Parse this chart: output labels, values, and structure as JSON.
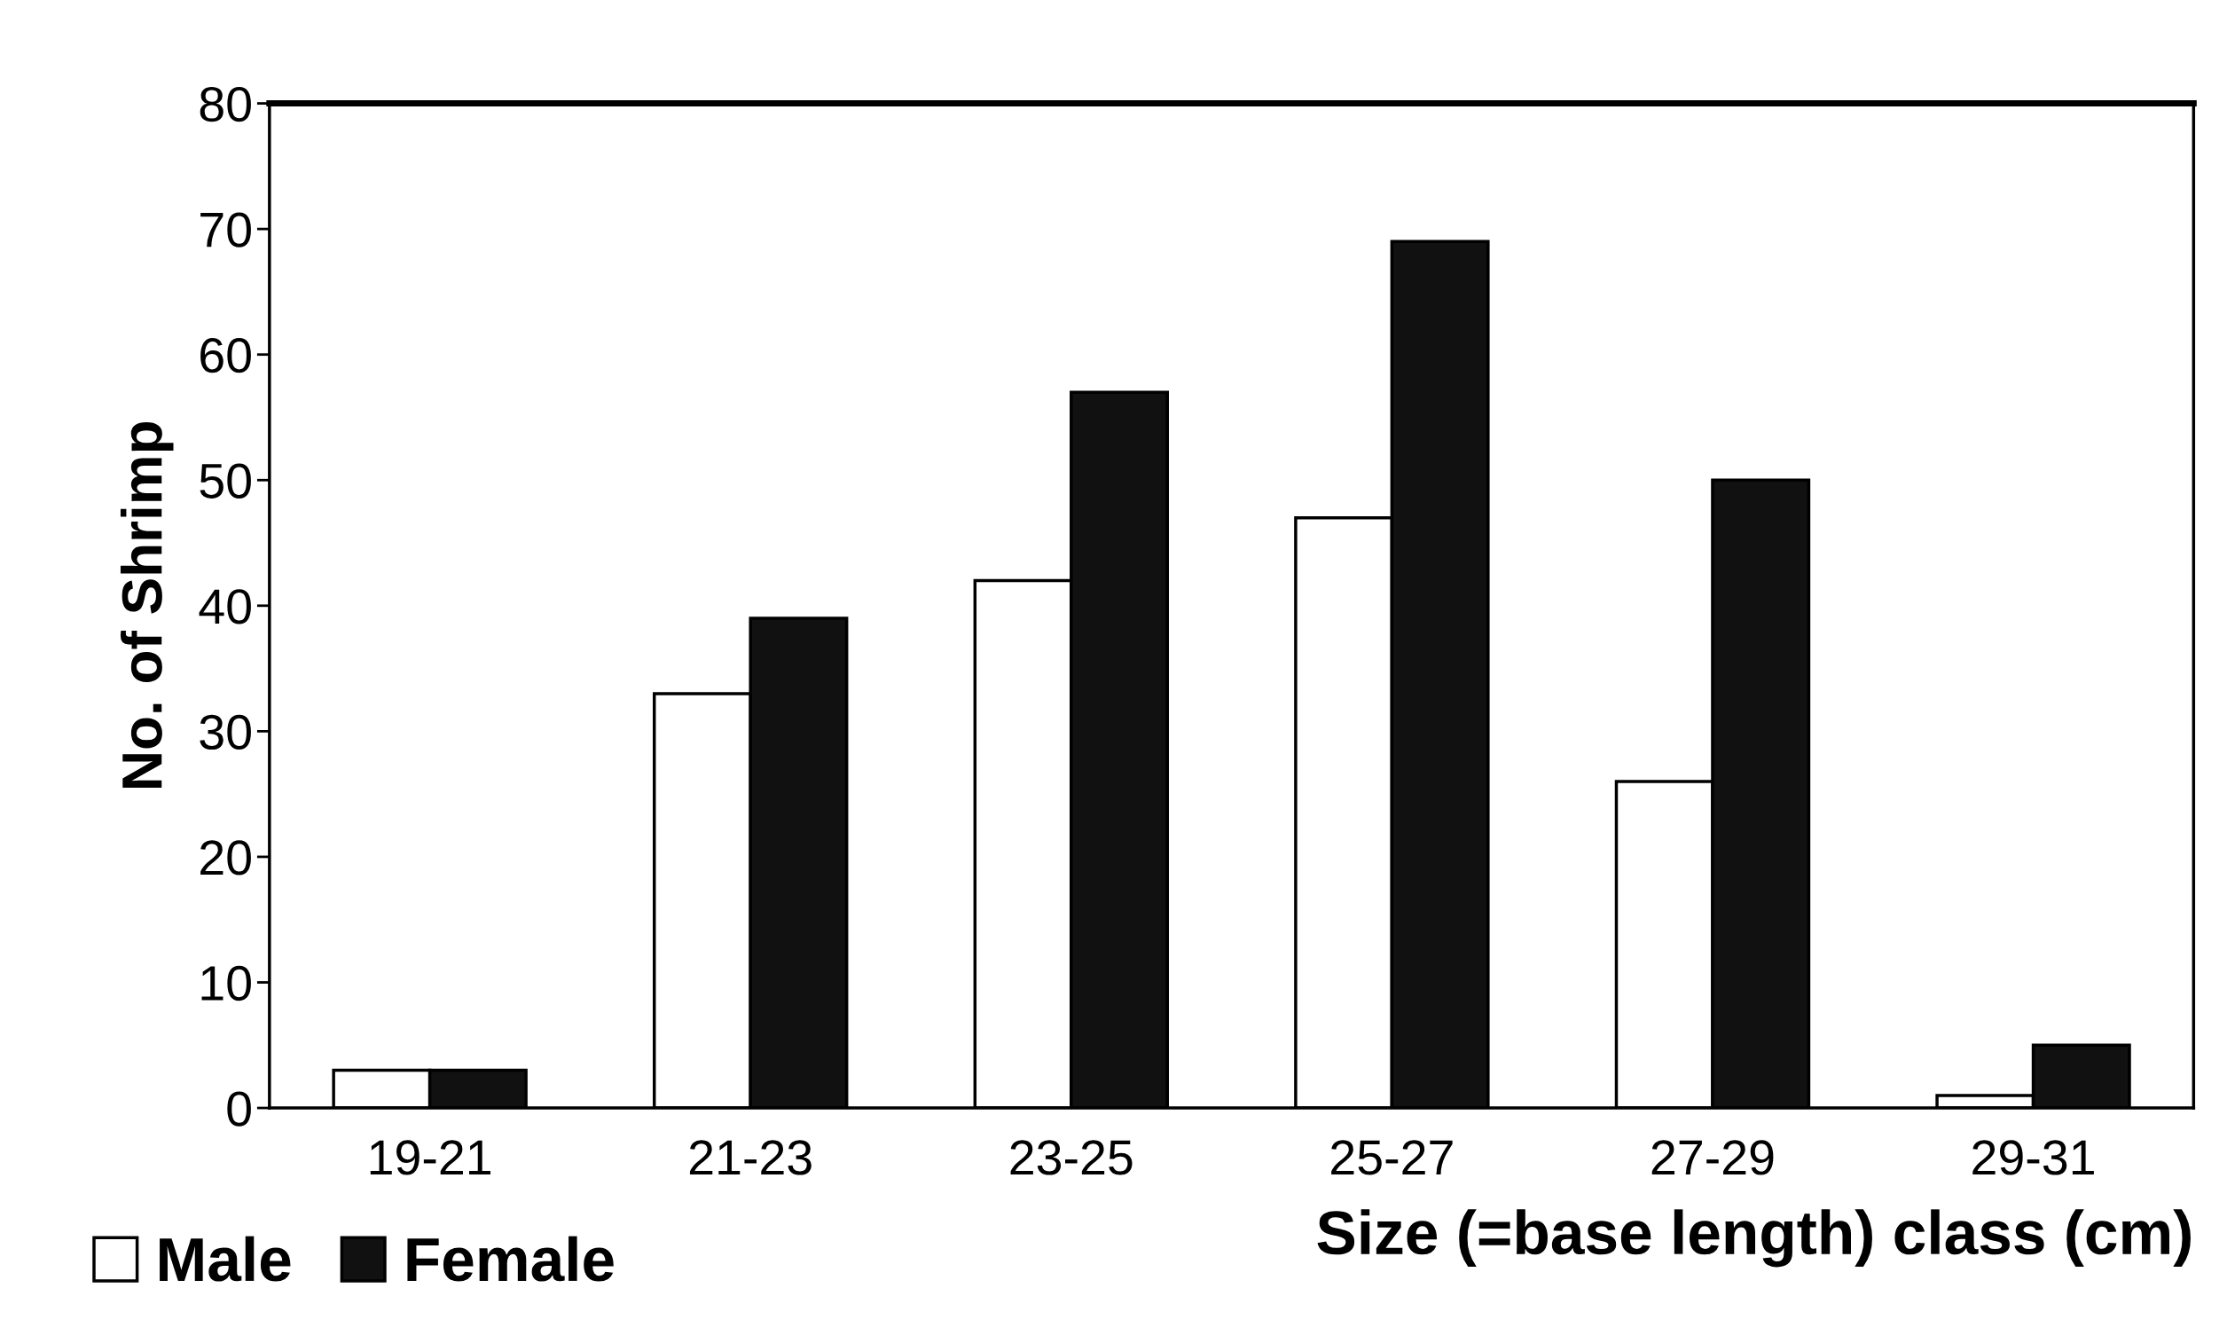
{
  "chart_data": {
    "type": "bar",
    "xlabel": "Size (=base length) class (cm)",
    "ylabel": "No. of Shrimp",
    "categories": [
      "19-21",
      "21-23",
      "23-25",
      "25-27",
      "27-29",
      "29-31"
    ],
    "series": [
      {
        "name": "Male",
        "color": "#ffffff",
        "values": [
          3,
          33,
          42,
          47,
          26,
          1
        ]
      },
      {
        "name": "Female",
        "color": "#111111",
        "values": [
          3,
          39,
          57,
          69,
          50,
          5
        ]
      }
    ],
    "ylim": [
      0,
      80
    ],
    "yticks": [
      0,
      10,
      20,
      30,
      40,
      50,
      60,
      70,
      80
    ],
    "grid": false,
    "legend": "bottom left"
  }
}
